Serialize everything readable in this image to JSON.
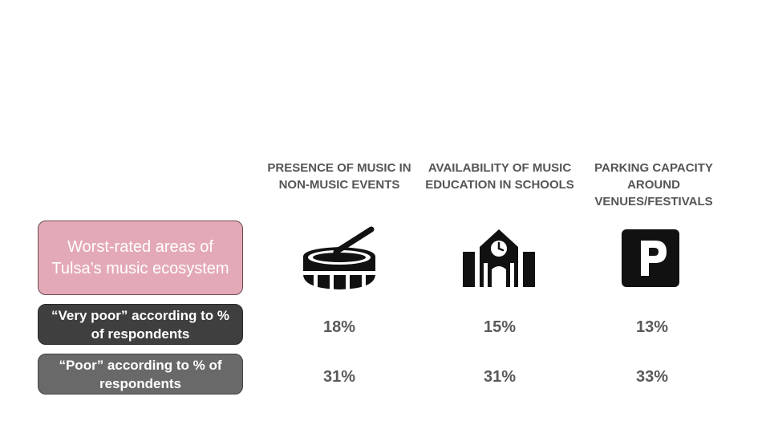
{
  "chart_data": {
    "type": "table",
    "title": "Worst-rated areas of Tulsa’s music ecosystem",
    "rows": [
      {
        "label": "“Very poor” according to % of respondents",
        "values": [
          "18%",
          "15%",
          "13%"
        ]
      },
      {
        "label": "“Poor” according to % of respondents",
        "values": [
          "31%",
          "31%",
          "33%"
        ]
      }
    ],
    "columns": [
      {
        "header": "PRESENCE OF MUSIC IN NON-MUSIC EVENTS",
        "icon": "drum-icon"
      },
      {
        "header": "AVAILABILITY OF MUSIC EDUCATION IN SCHOOLS",
        "icon": "school-icon"
      },
      {
        "header": "PARKING CAPACITY AROUND VENUES/FESTIVALS",
        "icon": "parking-icon"
      }
    ]
  },
  "colors": {
    "title_box": "#e4a9b7",
    "very_poor_box": "#3f3f3f",
    "poor_box": "#696969",
    "icon": "#111111",
    "text_gray": "#555555"
  }
}
